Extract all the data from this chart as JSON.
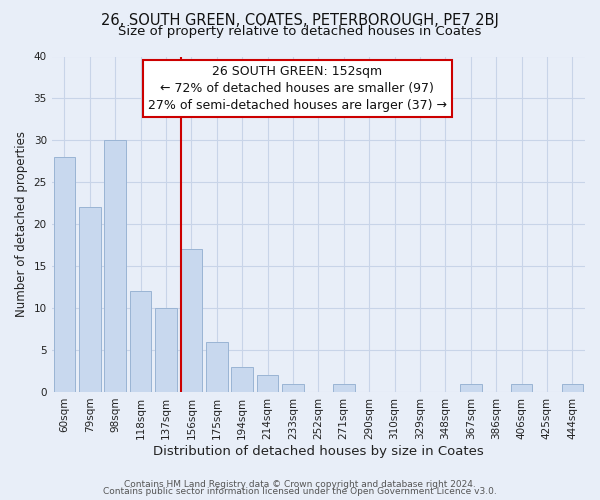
{
  "title": "26, SOUTH GREEN, COATES, PETERBOROUGH, PE7 2BJ",
  "subtitle": "Size of property relative to detached houses in Coates",
  "xlabel": "Distribution of detached houses by size in Coates",
  "ylabel": "Number of detached properties",
  "bar_labels": [
    "60sqm",
    "79sqm",
    "98sqm",
    "118sqm",
    "137sqm",
    "156sqm",
    "175sqm",
    "194sqm",
    "214sqm",
    "233sqm",
    "252sqm",
    "271sqm",
    "290sqm",
    "310sqm",
    "329sqm",
    "348sqm",
    "367sqm",
    "386sqm",
    "406sqm",
    "425sqm",
    "444sqm"
  ],
  "bar_values": [
    28,
    22,
    30,
    12,
    10,
    17,
    6,
    3,
    2,
    1,
    0,
    1,
    0,
    0,
    0,
    0,
    1,
    0,
    1,
    0,
    1
  ],
  "bar_color": "#c8d8ee",
  "bar_edge_color": "#9ab4d4",
  "vline_x_index": 5,
  "vline_color": "#cc0000",
  "annotation_title": "26 SOUTH GREEN: 152sqm",
  "annotation_line1": "← 72% of detached houses are smaller (97)",
  "annotation_line2": "27% of semi-detached houses are larger (37) →",
  "annotation_box_color": "#ffffff",
  "annotation_box_edge": "#cc0000",
  "ylim": [
    0,
    40
  ],
  "yticks": [
    0,
    5,
    10,
    15,
    20,
    25,
    30,
    35,
    40
  ],
  "grid_color": "#c8d4e8",
  "background_color": "#e8eef8",
  "footer_line1": "Contains HM Land Registry data © Crown copyright and database right 2024.",
  "footer_line2": "Contains public sector information licensed under the Open Government Licence v3.0.",
  "title_fontsize": 10.5,
  "subtitle_fontsize": 9.5,
  "xlabel_fontsize": 9.5,
  "ylabel_fontsize": 8.5,
  "tick_fontsize": 7.5,
  "footer_fontsize": 6.5,
  "annotation_fontsize": 9
}
